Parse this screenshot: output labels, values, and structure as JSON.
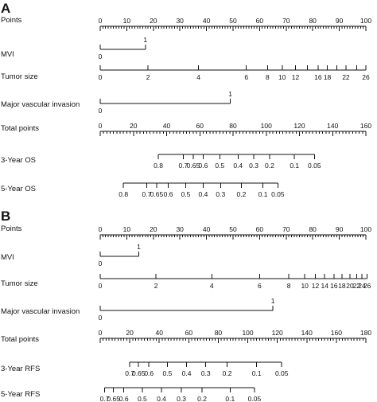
{
  "chart_data": [
    {
      "type": "nomogram",
      "panel": "A",
      "rows": [
        {
          "label": "Points",
          "kind": "scale",
          "min": 0,
          "max": 100,
          "minor_step": 1,
          "major_step": 10,
          "labels": [
            {
              "v": 0,
              "t": "0"
            },
            {
              "v": 10,
              "t": "10"
            },
            {
              "v": 20,
              "t": "20"
            },
            {
              "v": 30,
              "t": "30"
            },
            {
              "v": 40,
              "t": "40"
            },
            {
              "v": 50,
              "t": "50"
            },
            {
              "v": 60,
              "t": "60"
            },
            {
              "v": 70,
              "t": "70"
            },
            {
              "v": 80,
              "t": "80"
            },
            {
              "v": 90,
              "t": "90"
            },
            {
              "v": 100,
              "t": "100"
            }
          ]
        },
        {
          "label": "MVI",
          "kind": "binary",
          "points_at": {
            "0": 0,
            "1": 17
          }
        },
        {
          "label": "Tumor size",
          "kind": "continuous",
          "range": [
            0,
            26
          ],
          "ticks": [
            {
              "v": 0,
              "p": 0
            },
            {
              "v": 2,
              "p": 18
            },
            {
              "v": 4,
              "p": 37
            },
            {
              "v": 6,
              "p": 55
            },
            {
              "v": 8,
              "p": 63
            },
            {
              "v": 10,
              "p": 68.5
            },
            {
              "v": 12,
              "p": 73.5
            },
            {
              "v": 14,
              "p": 78
            },
            {
              "v": 16,
              "p": 82
            },
            {
              "v": 18,
              "p": 85.5
            },
            {
              "v": 20,
              "p": 89
            },
            {
              "v": 22,
              "p": 92.5
            },
            {
              "v": 24,
              "p": 96.5
            },
            {
              "v": 26,
              "p": 100
            }
          ],
          "labels": [
            {
              "v": 0,
              "t": "0"
            },
            {
              "v": 2,
              "t": "2"
            },
            {
              "v": 4,
              "t": "4"
            },
            {
              "v": 6,
              "t": "6"
            },
            {
              "v": 8,
              "t": "8"
            },
            {
              "v": 10,
              "t": "10"
            },
            {
              "v": 12,
              "t": "12"
            },
            {
              "v": 16,
              "t": "16"
            },
            {
              "v": 18,
              "t": "18"
            },
            {
              "v": 22,
              "t": "22"
            },
            {
              "v": 26,
              "t": "26"
            }
          ]
        },
        {
          "label": "Major vascular invasion",
          "kind": "binary",
          "points_at": {
            "0": 0,
            "1": 49
          }
        },
        {
          "label": "Total points",
          "kind": "scale",
          "min": 0,
          "max": 160,
          "minor_step": 2,
          "major_step": 20,
          "labels": [
            {
              "v": 0,
              "t": "0"
            },
            {
              "v": 20,
              "t": "20"
            },
            {
              "v": 40,
              "t": "40"
            },
            {
              "v": 60,
              "t": "60"
            },
            {
              "v": 80,
              "t": "80"
            },
            {
              "v": 100,
              "t": "100"
            },
            {
              "v": 120,
              "t": "120"
            },
            {
              "v": 140,
              "t": "140"
            },
            {
              "v": 160,
              "t": "160"
            }
          ]
        },
        {
          "label": "3-Year OS",
          "kind": "probability",
          "ticks": [
            {
              "v": 0.8,
              "t": "0.8",
              "tp": 35
            },
            {
              "v": 0.7,
              "t": "0.7",
              "tp": 50
            },
            {
              "v": 0.65,
              "t": "0.65",
              "tp": 56
            },
            {
              "v": 0.6,
              "t": "0.6",
              "tp": 62
            },
            {
              "v": 0.5,
              "t": "0.5",
              "tp": 72
            },
            {
              "v": 0.4,
              "t": "0.4",
              "tp": 83
            },
            {
              "v": 0.3,
              "t": "0.3",
              "tp": 92.5
            },
            {
              "v": 0.2,
              "t": "0.2",
              "tp": 102
            },
            {
              "v": 0.1,
              "t": "0.1",
              "tp": 117
            },
            {
              "v": 0.05,
              "t": "0.05",
              "tp": 129
            }
          ]
        },
        {
          "label": "5-Year OS",
          "kind": "probability",
          "ticks": [
            {
              "v": 0.8,
              "t": "0.8",
              "tp": 14
            },
            {
              "v": 0.7,
              "t": "0.7",
              "tp": 28
            },
            {
              "v": 0.65,
              "t": "0.65",
              "tp": 34
            },
            {
              "v": 0.6,
              "t": "0.6",
              "tp": 41
            },
            {
              "v": 0.5,
              "t": "0.5",
              "tp": 51.5
            },
            {
              "v": 0.4,
              "t": "0.4",
              "tp": 62
            },
            {
              "v": 0.3,
              "t": "0.3",
              "tp": 72.5
            },
            {
              "v": 0.2,
              "t": "0.2",
              "tp": 85
            },
            {
              "v": 0.1,
              "t": "0.1",
              "tp": 98
            },
            {
              "v": 0.05,
              "t": "0.05",
              "tp": 107
            }
          ]
        }
      ]
    },
    {
      "type": "nomogram",
      "panel": "B",
      "rows": [
        {
          "label": "Points",
          "kind": "scale",
          "min": 0,
          "max": 100,
          "minor_step": 1,
          "major_step": 10,
          "labels": [
            {
              "v": 0,
              "t": "0"
            },
            {
              "v": 10,
              "t": "10"
            },
            {
              "v": 20,
              "t": "20"
            },
            {
              "v": 30,
              "t": "30"
            },
            {
              "v": 40,
              "t": "40"
            },
            {
              "v": 50,
              "t": "50"
            },
            {
              "v": 60,
              "t": "60"
            },
            {
              "v": 70,
              "t": "70"
            },
            {
              "v": 80,
              "t": "80"
            },
            {
              "v": 90,
              "t": "90"
            },
            {
              "v": 100,
              "t": "100"
            }
          ]
        },
        {
          "label": "MVI",
          "kind": "binary",
          "points_at": {
            "0": 0,
            "1": 14.5
          }
        },
        {
          "label": "Tumor size",
          "kind": "continuous",
          "range": [
            0,
            26
          ],
          "ticks": [
            {
              "v": 0,
              "p": 0
            },
            {
              "v": 2,
              "p": 21
            },
            {
              "v": 4,
              "p": 42
            },
            {
              "v": 6,
              "p": 60
            },
            {
              "v": 8,
              "p": 71
            },
            {
              "v": 10,
              "p": 77
            },
            {
              "v": 12,
              "p": 81
            },
            {
              "v": 14,
              "p": 84.5
            },
            {
              "v": 16,
              "p": 88
            },
            {
              "v": 18,
              "p": 91
            },
            {
              "v": 20,
              "p": 94
            },
            {
              "v": 22,
              "p": 96.5
            },
            {
              "v": 24,
              "p": 98.5
            },
            {
              "v": 26,
              "p": 100.5
            }
          ],
          "labels": [
            {
              "v": 0,
              "t": "0"
            },
            {
              "v": 2,
              "t": "2"
            },
            {
              "v": 4,
              "t": "4"
            },
            {
              "v": 6,
              "t": "6"
            },
            {
              "v": 8,
              "t": "8"
            },
            {
              "v": 10,
              "t": "10"
            },
            {
              "v": 12,
              "t": "12"
            },
            {
              "v": 14,
              "t": "14"
            },
            {
              "v": 16,
              "t": "16"
            },
            {
              "v": 18,
              "t": "18"
            },
            {
              "v": 20,
              "t": "20"
            },
            {
              "v": 22,
              "t": "22"
            },
            {
              "v": 24,
              "t": "24"
            },
            {
              "v": 26,
              "t": "26"
            }
          ]
        },
        {
          "label": "Major vascular invasion",
          "kind": "binary",
          "points_at": {
            "0": 0,
            "1": 65
          }
        },
        {
          "label": "Total points",
          "kind": "scale",
          "min": 0,
          "max": 180,
          "minor_step": 2,
          "major_step": 20,
          "labels": [
            {
              "v": 0,
              "t": "0"
            },
            {
              "v": 20,
              "t": "20"
            },
            {
              "v": 40,
              "t": "40"
            },
            {
              "v": 60,
              "t": "60"
            },
            {
              "v": 80,
              "t": "80"
            },
            {
              "v": 100,
              "t": "100"
            },
            {
              "v": 120,
              "t": "120"
            },
            {
              "v": 140,
              "t": "140"
            },
            {
              "v": 160,
              "t": "160"
            },
            {
              "v": 180,
              "t": "180"
            }
          ]
        },
        {
          "label": "3-Year RFS",
          "kind": "probability",
          "ticks": [
            {
              "v": 0.7,
              "t": "0.7",
              "tp": 20
            },
            {
              "v": 0.65,
              "t": "0.65",
              "tp": 26
            },
            {
              "v": 0.6,
              "t": "0.6",
              "tp": 33
            },
            {
              "v": 0.5,
              "t": "0.5",
              "tp": 45.5
            },
            {
              "v": 0.4,
              "t": "0.4",
              "tp": 58.5
            },
            {
              "v": 0.3,
              "t": "0.3",
              "tp": 71.5
            },
            {
              "v": 0.2,
              "t": "0.2",
              "tp": 86
            },
            {
              "v": 0.1,
              "t": "0.1",
              "tp": 106
            },
            {
              "v": 0.05,
              "t": "0.05",
              "tp": 123
            }
          ]
        },
        {
          "label": "5-Year RFS",
          "kind": "probability",
          "ticks": [
            {
              "v": 0.7,
              "t": "0.7",
              "tp": 3
            },
            {
              "v": 0.65,
              "t": "0.65",
              "tp": 9
            },
            {
              "v": 0.6,
              "t": "0.6",
              "tp": 16
            },
            {
              "v": 0.5,
              "t": "0.5",
              "tp": 28.5
            },
            {
              "v": 0.4,
              "t": "0.4",
              "tp": 41.5
            },
            {
              "v": 0.3,
              "t": "0.3",
              "tp": 55
            },
            {
              "v": 0.2,
              "t": "0.2",
              "tp": 69
            },
            {
              "v": 0.1,
              "t": "0.1",
              "tp": 88
            },
            {
              "v": 0.05,
              "t": "0.05",
              "tp": 104.5
            }
          ]
        }
      ]
    }
  ]
}
